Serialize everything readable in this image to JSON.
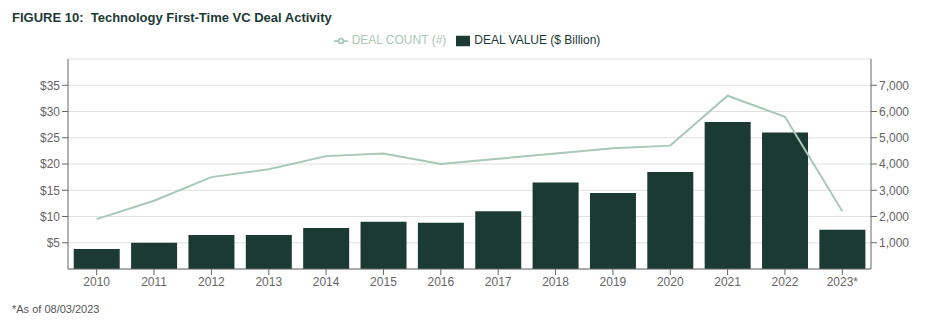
{
  "chart_data": {
    "type": "bar",
    "title": "FIGURE 10:  Technology First-Time VC Deal Activity",
    "annotations": [
      "*As of 08/03/2023"
    ],
    "categories": [
      "2010",
      "2011",
      "2012",
      "2013",
      "2014",
      "2015",
      "2016",
      "2017",
      "2018",
      "2019",
      "2020",
      "2021",
      "2022",
      "2023*"
    ],
    "series": [
      {
        "name": "DEAL VALUE ($ Billion)",
        "type": "bar",
        "color": "#1c3a34",
        "values": [
          3.8,
          5.0,
          6.5,
          6.5,
          7.8,
          9.0,
          8.8,
          11.0,
          16.5,
          14.5,
          18.5,
          28.0,
          26.0,
          7.5
        ]
      },
      {
        "name": "DEAL COUNT (#)",
        "type": "line",
        "axis": "y2",
        "color": "#a8c8b8",
        "values": [
          1900,
          2600,
          3500,
          3800,
          4300,
          4400,
          4000,
          4200,
          4400,
          4600,
          4700,
          6600,
          5800,
          2200
        ]
      }
    ],
    "ylim": [
      0,
      40
    ],
    "yticks": [
      {
        "value": 5,
        "label": "$5"
      },
      {
        "value": 10,
        "label": "$10"
      },
      {
        "value": 15,
        "label": "$15"
      },
      {
        "value": 20,
        "label": "$20"
      },
      {
        "value": 25,
        "label": "$25"
      },
      {
        "value": 30,
        "label": "$30"
      },
      {
        "value": 35,
        "label": "$35"
      }
    ],
    "y2lim": [
      0,
      8000
    ],
    "y2ticks": [
      {
        "value": 1000,
        "label": "1,000"
      },
      {
        "value": 2000,
        "label": "2,000"
      },
      {
        "value": 3000,
        "label": "3,000"
      },
      {
        "value": 4000,
        "label": "4,000"
      },
      {
        "value": 5000,
        "label": "5,000"
      },
      {
        "value": 6000,
        "label": "6,000"
      },
      {
        "value": 7000,
        "label": "7,000"
      }
    ],
    "grid": true,
    "legend": "top"
  }
}
